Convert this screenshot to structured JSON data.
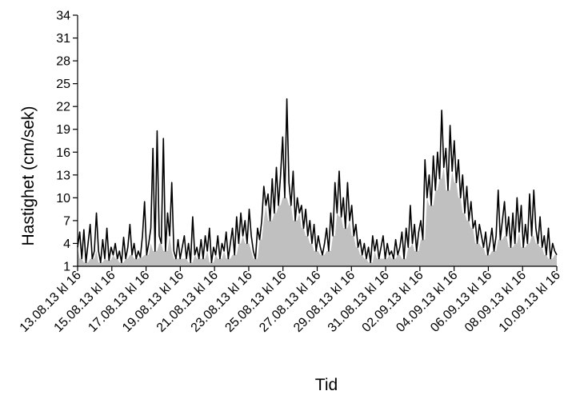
{
  "chart_data": {
    "type": "area",
    "title": "",
    "xlabel": "Tid",
    "ylabel": "Hastighet  (cm/sek)",
    "ylim": [
      1,
      34
    ],
    "yticks": [
      1,
      4,
      7,
      10,
      13,
      16,
      19,
      22,
      25,
      28,
      31,
      34
    ],
    "xtick_labels": [
      "13.08.13 kl 16",
      "15.08.13 kl 16",
      "17.08.13 kl 16",
      "19.08.13 kl 16",
      "21.08.13 kl 16",
      "23.08.13 kl 16",
      "25.08.13 kl 16",
      "27.08.13 kl 16",
      "29.08.13 kl 16",
      "31.08.13 kl 16",
      "02.09.13 kl 16",
      "04.09.13 kl 16",
      "06.09.13 kl 16",
      "08.09.13 kl 16",
      "10.09.13 kl 16"
    ],
    "grid": false,
    "legend": "none",
    "series": [
      {
        "line_color": "#000000",
        "fill_color": "#c0c0c0",
        "values": [
          3.5,
          5.5,
          2.0,
          5.8,
          1.5,
          4.0,
          6.5,
          2.0,
          3.0,
          8.0,
          3.0,
          1.5,
          4.5,
          2.0,
          6.0,
          1.8,
          3.5,
          2.5,
          4.0,
          2.0,
          3.0,
          1.5,
          4.8,
          2.0,
          3.5,
          6.5,
          2.5,
          4.0,
          2.0,
          3.0,
          2.2,
          5.0,
          9.5,
          2.5,
          4.0,
          6.0,
          16.5,
          3.0,
          18.8,
          5.0,
          4.0,
          17.8,
          3.0,
          8.0,
          5.0,
          12.0,
          3.0,
          2.0,
          4.5,
          2.0,
          3.5,
          5.0,
          2.0,
          4.0,
          1.5,
          7.5,
          2.5,
          3.5,
          2.0,
          4.5,
          2.0,
          5.0,
          3.0,
          6.0,
          1.5,
          3.5,
          2.5,
          5.0,
          2.0,
          4.0,
          3.0,
          5.5,
          2.0,
          4.0,
          6.0,
          2.5,
          7.5,
          4.0,
          8.0,
          5.0,
          7.0,
          4.0,
          8.5,
          5.0,
          3.0,
          2.0,
          6.0,
          4.5,
          7.0,
          11.5,
          9.0,
          10.5,
          7.0,
          12.5,
          8.0,
          14.0,
          9.0,
          13.0,
          18.0,
          10.0,
          23.0,
          12.0,
          9.0,
          13.5,
          7.0,
          10.0,
          8.0,
          9.0,
          6.0,
          8.5,
          5.0,
          7.0,
          4.0,
          6.5,
          3.0,
          5.0,
          3.5,
          2.5,
          4.0,
          6.0,
          3.0,
          8.0,
          5.0,
          12.0,
          8.0,
          13.5,
          7.5,
          10.0,
          6.0,
          12.0,
          7.0,
          9.0,
          5.0,
          6.5,
          3.5,
          4.5,
          2.5,
          4.0,
          2.0,
          3.5,
          1.5,
          5.0,
          3.0,
          4.5,
          2.0,
          3.5,
          5.0,
          2.0,
          4.0,
          2.5,
          3.0,
          2.0,
          4.5,
          2.5,
          3.5,
          5.5,
          2.0,
          6.0,
          3.5,
          9.0,
          4.0,
          6.5,
          3.0,
          5.5,
          7.0,
          4.5,
          15.0,
          10.0,
          13.0,
          9.0,
          15.5,
          11.0,
          16.0,
          12.5,
          21.5,
          14.0,
          16.5,
          11.0,
          19.5,
          13.5,
          17.5,
          12.0,
          15.0,
          10.0,
          13.0,
          8.0,
          11.5,
          7.0,
          9.5,
          6.0,
          7.0,
          4.0,
          6.5,
          5.0,
          3.5,
          5.5,
          2.5,
          4.0,
          6.0,
          3.0,
          5.0,
          11.0,
          4.5,
          7.0,
          9.5,
          5.0,
          7.5,
          3.5,
          8.0,
          4.0,
          10.0,
          5.5,
          9.0,
          3.5,
          6.5,
          4.0,
          10.5,
          5.0,
          11.0,
          6.0,
          4.0,
          7.5,
          3.5,
          5.0,
          2.5,
          6.0,
          2.0,
          4.0,
          3.0,
          2.5
        ]
      }
    ]
  }
}
